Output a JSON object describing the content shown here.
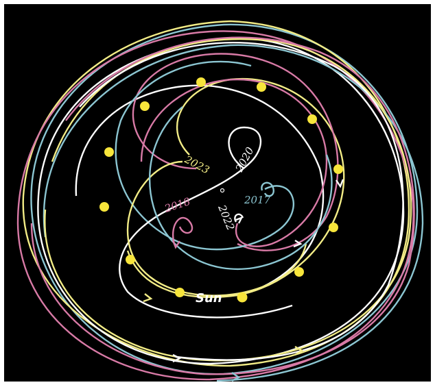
{
  "colors": {
    "background": "#000000",
    "white": "#ffffff",
    "yellow": "#f2ec86",
    "pink": "#d87aa6",
    "cyan": "#8cc6d2",
    "planet": "#f7e53b"
  },
  "labels": {
    "y2023": "2023",
    "y2020": "2020",
    "y2018": "2018",
    "y2022": "2022",
    "y2017": "2017",
    "sun": "Sun"
  }
}
